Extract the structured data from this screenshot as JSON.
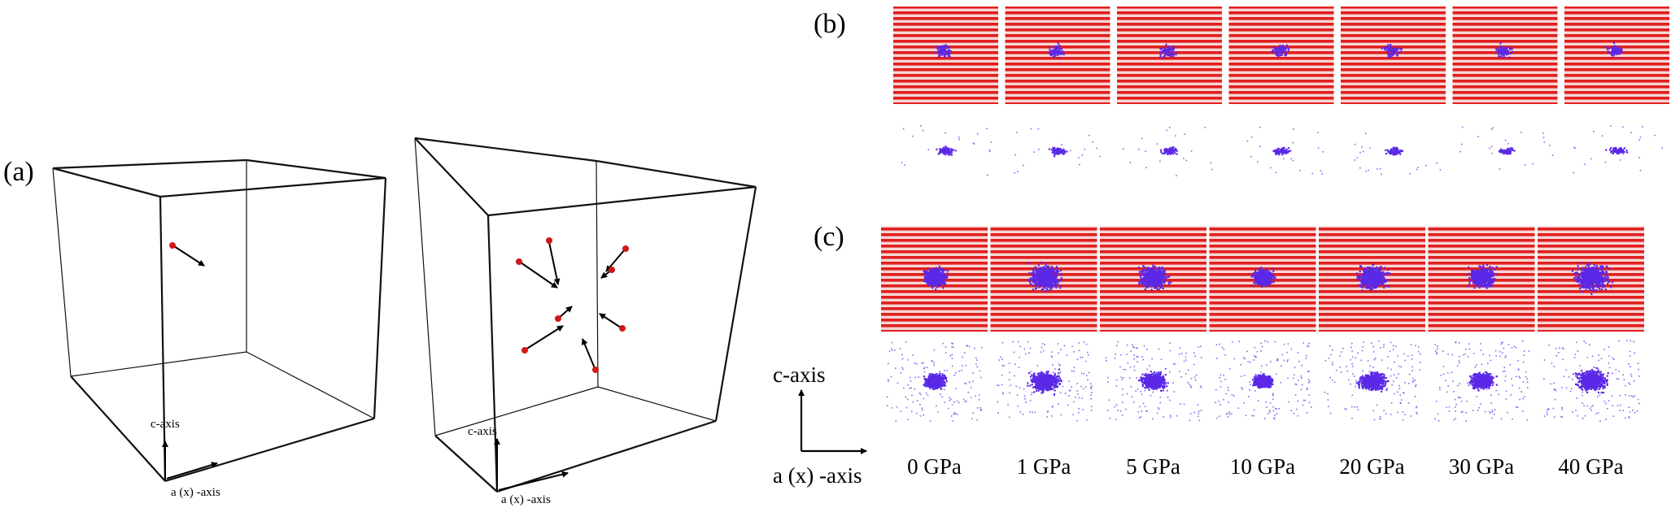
{
  "panels": {
    "a": {
      "label": "(a)",
      "left_axes": {
        "c_label": "c-axis",
        "a_label": "a (x) -axis"
      },
      "right_axes": {
        "c_label": "c-axis",
        "a_label": "a (x) -axis"
      }
    },
    "b": {
      "label": "(b)"
    },
    "c": {
      "label": "(c)"
    }
  },
  "legend_axes": {
    "c_label": "c-axis",
    "a_label": "a (x) -axis"
  },
  "pressures": [
    "0 GPa",
    "1 GPa",
    "5 GPa",
    "10 GPa",
    "20 GPa",
    "30 GPa",
    "40 GPa"
  ],
  "cascade_size_c": [
    0.55,
    0.75,
    0.65,
    0.5,
    0.7,
    0.6,
    0.8
  ],
  "colors": {
    "lattice": "#e0201e",
    "defect": "#5a28e6",
    "box": "#111111"
  }
}
